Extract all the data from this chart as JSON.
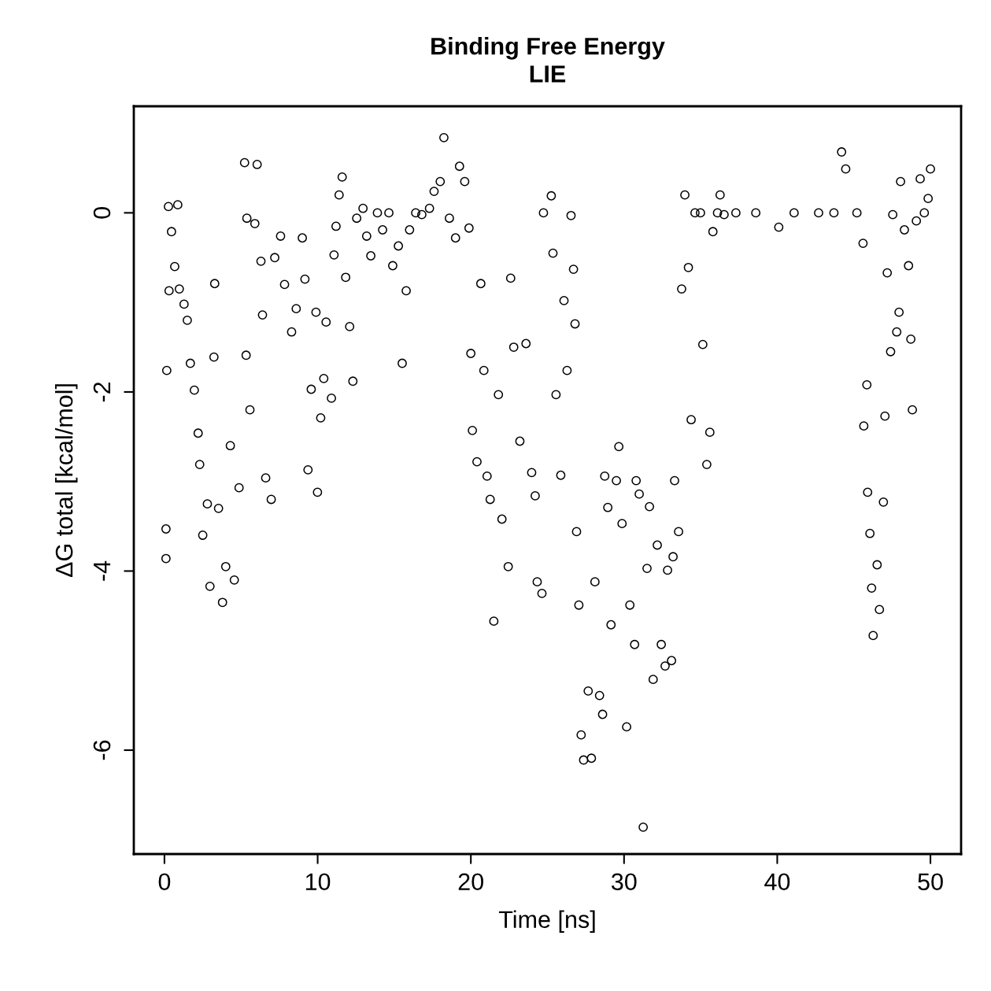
{
  "chart_data": {
    "type": "scatter",
    "title": "Binding Free Energy\nLIE",
    "xlabel": "Time [ns]",
    "ylabel": "ΔG total [kcal/mol]",
    "xlim": [
      -2,
      52
    ],
    "ylim": [
      -7.16,
      1.19
    ],
    "xticks": [
      0,
      10,
      20,
      30,
      40,
      50
    ],
    "yticks": [
      {
        "value": -6,
        "label": "-6"
      },
      {
        "value": -4,
        "label": "-4"
      },
      {
        "value": -2,
        "label": "-2"
      },
      0
    ],
    "grid": false,
    "legend": false,
    "marker": "circle",
    "series": [
      {
        "color": "#000000",
        "x": [
          0.1,
          0.1,
          0.15,
          0.26,
          0.3,
          0.46,
          0.67,
          0.87,
          0.97,
          1.28,
          1.49,
          1.69,
          1.95,
          2.2,
          2.3,
          2.5,
          2.8,
          2.97,
          3.28,
          3.23,
          3.53,
          3.79,
          4.0,
          4.3,
          4.56,
          4.87,
          5.23,
          5.38,
          5.33,
          5.58,
          5.9,
          6.05,
          6.3,
          6.4,
          6.61,
          6.97,
          7.2,
          7.58,
          7.84,
          8.3,
          8.6,
          9.0,
          9.17,
          9.37,
          9.58,
          9.89,
          9.99,
          10.2,
          10.4,
          10.55,
          10.9,
          11.07,
          11.2,
          11.4,
          11.6,
          11.83,
          12.09,
          12.3,
          12.55,
          12.96,
          13.2,
          13.47,
          13.9,
          14.24,
          14.65,
          14.9,
          15.27,
          15.52,
          15.78,
          16.0,
          16.4,
          16.8,
          17.3,
          17.6,
          18.0,
          18.24,
          18.6,
          19.0,
          19.26,
          19.6,
          19.88,
          20.0,
          20.1,
          20.4,
          20.65,
          20.85,
          21.06,
          21.26,
          21.5,
          21.8,
          22.03,
          22.44,
          22.6,
          22.8,
          23.2,
          23.6,
          23.97,
          24.2,
          24.33,
          24.64,
          24.74,
          25.25,
          25.36,
          25.56,
          25.87,
          26.08,
          26.28,
          26.54,
          26.7,
          26.8,
          26.9,
          27.05,
          27.2,
          27.36,
          27.66,
          27.87,
          28.1,
          28.4,
          28.6,
          28.74,
          28.94,
          29.15,
          29.5,
          29.66,
          29.87,
          30.17,
          30.38,
          30.69,
          30.79,
          30.99,
          31.25,
          31.5,
          31.66,
          31.9,
          32.17,
          32.43,
          32.68,
          32.84,
          33.1,
          33.2,
          33.3,
          33.56,
          33.76,
          33.97,
          34.2,
          34.38,
          34.63,
          34.99,
          35.14,
          35.4,
          35.6,
          35.8,
          36.1,
          36.27,
          36.53,
          37.3,
          38.6,
          40.1,
          41.1,
          42.7,
          43.7,
          44.2,
          44.47,
          45.2,
          45.6,
          45.65,
          45.85,
          45.9,
          46.05,
          46.16,
          46.26,
          46.52,
          46.67,
          46.93,
          47.03,
          47.18,
          47.4,
          47.54,
          47.8,
          47.95,
          48.05,
          48.3,
          48.57,
          48.72,
          48.82,
          49.08,
          49.33,
          49.6,
          49.85,
          50.0
        ],
        "values": [
          -3.53,
          -3.86,
          -1.76,
          0.07,
          -0.87,
          -0.21,
          -0.6,
          0.09,
          -0.85,
          -1.02,
          -1.2,
          -1.68,
          -1.98,
          -2.46,
          -2.81,
          -3.6,
          -3.25,
          -4.17,
          -0.79,
          -1.61,
          -3.3,
          -4.35,
          -3.95,
          -2.6,
          -4.1,
          -3.07,
          0.56,
          -0.06,
          -1.59,
          -2.2,
          -0.12,
          0.54,
          -0.54,
          -1.14,
          -2.96,
          -3.2,
          -0.5,
          -0.26,
          -0.8,
          -1.33,
          -1.07,
          -0.28,
          -0.74,
          -2.87,
          -1.97,
          -1.11,
          -3.12,
          -2.29,
          -1.85,
          -1.22,
          -2.07,
          -0.47,
          -0.15,
          0.2,
          0.4,
          -0.72,
          -1.27,
          -1.88,
          -0.06,
          0.05,
          -0.26,
          -0.48,
          0.0,
          -0.19,
          0.0,
          -0.59,
          -0.37,
          -1.68,
          -0.87,
          -0.19,
          0.0,
          -0.02,
          0.05,
          0.24,
          0.35,
          0.84,
          -0.06,
          -0.28,
          0.52,
          0.35,
          -0.17,
          -1.57,
          -2.43,
          -2.78,
          -0.79,
          -1.76,
          -2.94,
          -3.2,
          -4.56,
          -2.03,
          -3.42,
          -3.95,
          -0.73,
          -1.5,
          -2.55,
          -1.46,
          -2.9,
          -3.16,
          -4.12,
          -4.25,
          0.0,
          0.19,
          -0.45,
          -2.03,
          -2.93,
          -0.98,
          -1.76,
          -0.03,
          -0.63,
          -1.24,
          -3.56,
          -4.38,
          -5.83,
          -6.11,
          -5.34,
          -6.09,
          -4.12,
          -5.39,
          -5.6,
          -2.94,
          -3.29,
          -4.6,
          -2.99,
          -2.61,
          -3.47,
          -5.74,
          -4.38,
          -4.82,
          -2.99,
          -3.14,
          -6.86,
          -3.97,
          -3.28,
          -5.21,
          -3.71,
          -4.82,
          -5.06,
          -3.99,
          -5.0,
          -3.84,
          -2.99,
          -3.56,
          -0.85,
          0.2,
          -0.61,
          -2.31,
          0.0,
          0.0,
          -1.47,
          -2.81,
          -2.45,
          -0.21,
          0.0,
          0.2,
          -0.02,
          0.0,
          0.0,
          -0.16,
          0.0,
          0.0,
          0.0,
          0.68,
          0.49,
          0.0,
          -0.34,
          -2.38,
          -1.92,
          -3.12,
          -3.58,
          -4.19,
          -4.72,
          -3.93,
          -4.43,
          -3.23,
          -2.27,
          -0.67,
          -1.55,
          -0.02,
          -1.33,
          -1.11,
          0.35,
          -0.19,
          -0.59,
          -1.41,
          -2.2,
          -0.09,
          0.38,
          0.0,
          0.16,
          0.49
        ]
      }
    ]
  }
}
